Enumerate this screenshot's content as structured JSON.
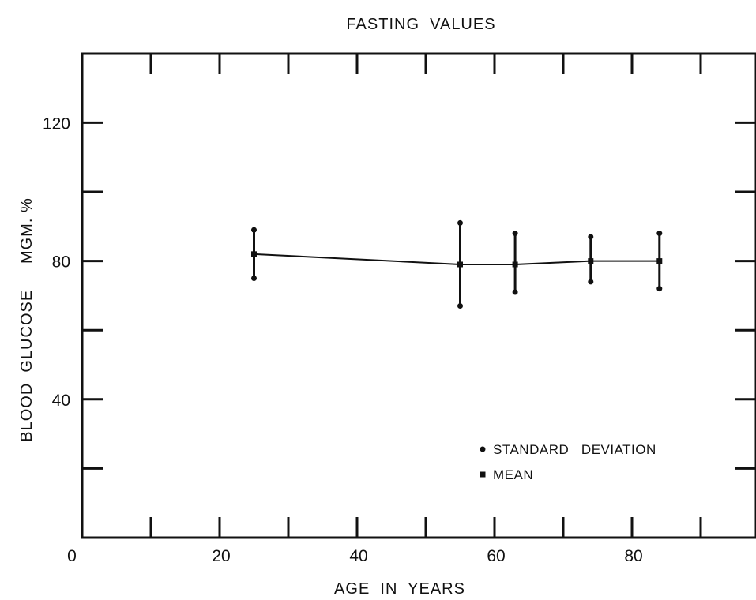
{
  "chart_data": {
    "type": "line",
    "title": "FASTING  VALUES",
    "xlabel": "AGE  IN  YEARS",
    "ylabel": "BLOOD  GLUCOSE     MGM. %",
    "xlim": [
      0,
      100
    ],
    "ylim": [
      0,
      140
    ],
    "x_ticks": [
      0,
      10,
      20,
      30,
      40,
      50,
      60,
      70,
      80,
      90
    ],
    "x_tick_labels": [
      "0",
      "20",
      "40",
      "60",
      "80"
    ],
    "x_tick_label_values": [
      0,
      20,
      40,
      60,
      80
    ],
    "y_ticks": [
      20,
      40,
      60,
      80,
      100,
      120
    ],
    "y_tick_labels": [
      "40",
      "80",
      "120"
    ],
    "y_tick_label_values": [
      40,
      80,
      120
    ],
    "grid": false,
    "legend": {
      "placement": "bottom-right",
      "entries": [
        {
          "marker": "dot",
          "label": "STANDARD   DEVIATION"
        },
        {
          "marker": "square",
          "label": "MEAN"
        }
      ]
    },
    "series": [
      {
        "x": [
          25,
          55,
          63,
          74,
          84
        ],
        "mean": [
          82,
          79,
          79,
          80,
          80
        ],
        "sd_upper": [
          89,
          91,
          88,
          87,
          88
        ],
        "sd_lower": [
          75,
          67,
          71,
          74,
          72
        ]
      }
    ],
    "colors": {
      "ink": "#111111",
      "background": "#ffffff"
    }
  }
}
